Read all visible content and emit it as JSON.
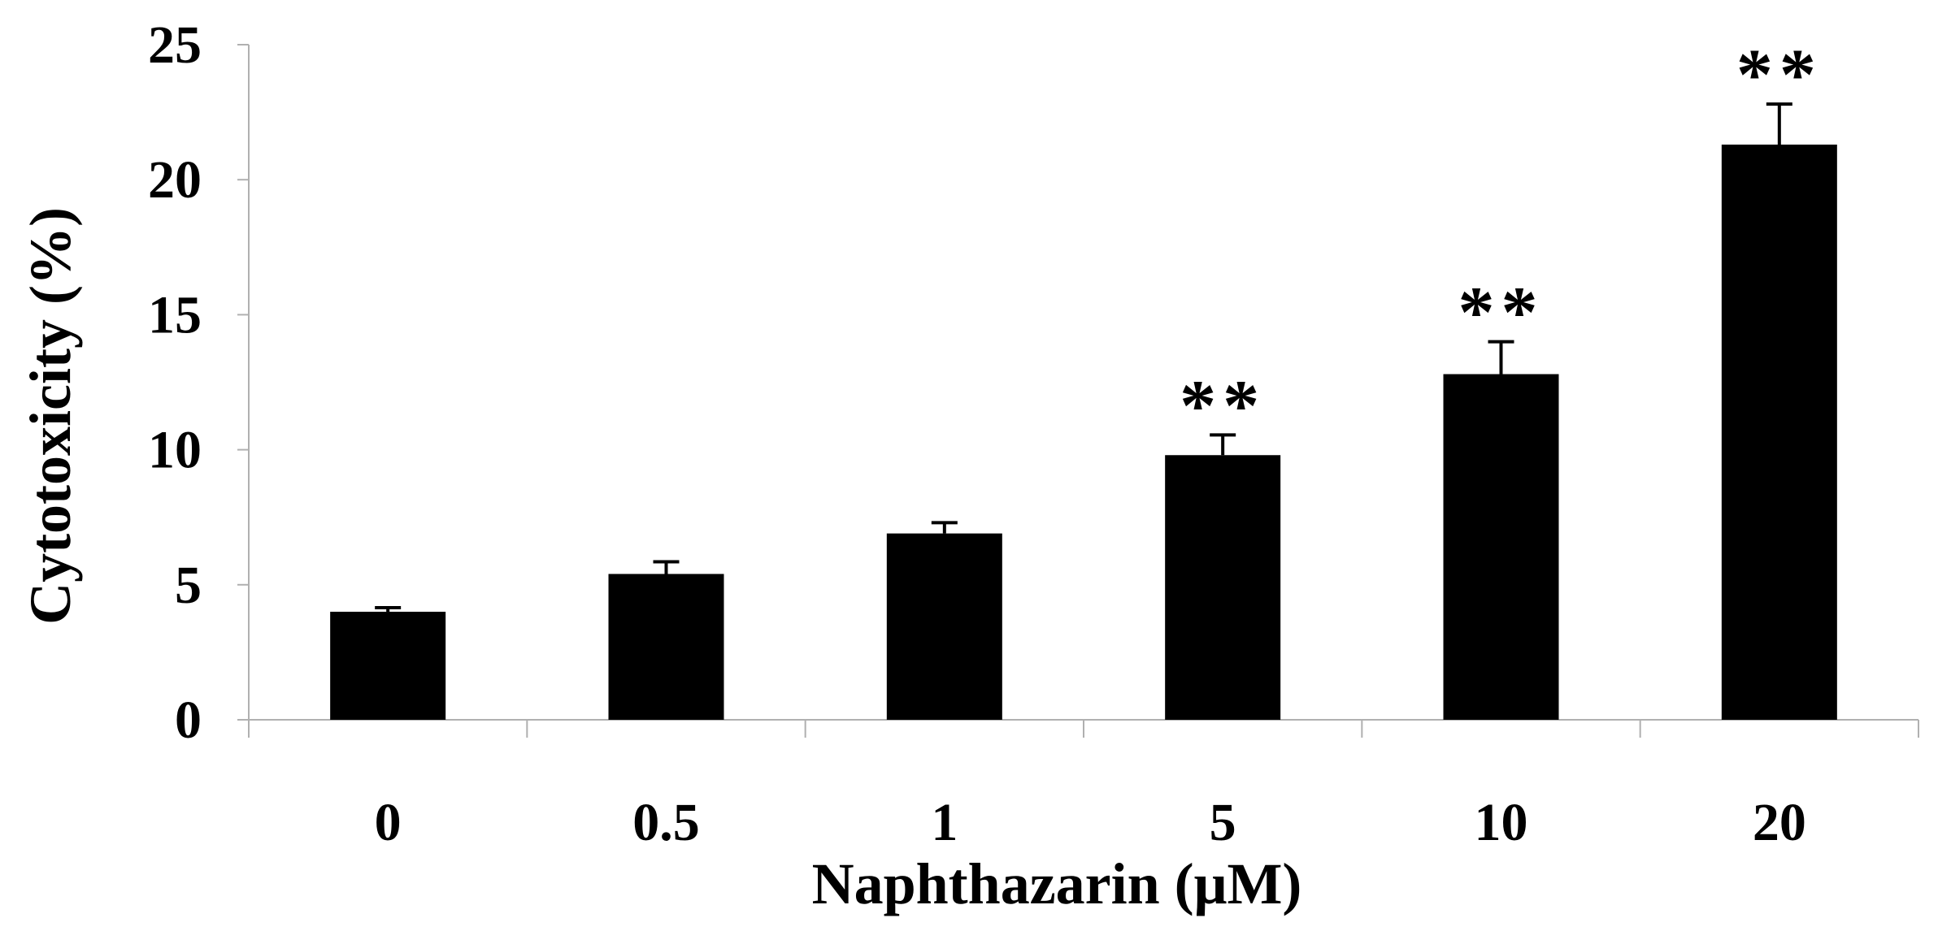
{
  "chart_data": {
    "type": "bar",
    "title": "",
    "xlabel": "Naphthazarin (μM)",
    "ylabel": "Cytotoxicity (%)",
    "categories": [
      "0",
      "0.5",
      "1",
      "5",
      "10",
      "20"
    ],
    "values": [
      4.0,
      5.4,
      6.9,
      9.8,
      12.8,
      21.3
    ],
    "error": [
      0.15,
      0.45,
      0.4,
      0.75,
      1.2,
      1.5
    ],
    "significance": [
      "",
      "",
      "",
      "**",
      "**",
      "**"
    ],
    "ylim": [
      0,
      25
    ],
    "yticks": [
      "0",
      "5",
      "10",
      "15",
      "20",
      "25"
    ],
    "grid": false,
    "legend": "none",
    "colors": {
      "bar": "#000000",
      "axis": "#b0b0b0",
      "text": "#000000"
    }
  }
}
